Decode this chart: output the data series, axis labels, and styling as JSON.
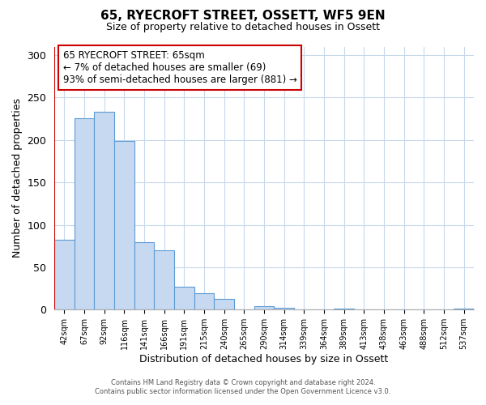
{
  "title": "65, RYECROFT STREET, OSSETT, WF5 9EN",
  "subtitle": "Size of property relative to detached houses in Ossett",
  "xlabel": "Distribution of detached houses by size in Ossett",
  "ylabel": "Number of detached properties",
  "bar_labels": [
    "42sqm",
    "67sqm",
    "92sqm",
    "116sqm",
    "141sqm",
    "166sqm",
    "191sqm",
    "215sqm",
    "240sqm",
    "265sqm",
    "290sqm",
    "314sqm",
    "339sqm",
    "364sqm",
    "389sqm",
    "413sqm",
    "438sqm",
    "463sqm",
    "488sqm",
    "512sqm",
    "537sqm"
  ],
  "bar_values": [
    82,
    226,
    233,
    199,
    80,
    70,
    27,
    19,
    13,
    0,
    4,
    2,
    0,
    0,
    1,
    0,
    0,
    0,
    0,
    0,
    1
  ],
  "bar_color": "#c6d9f0",
  "highlight_edge_color": "#cc0000",
  "normal_edge_color": "#5b9bd5",
  "annotation_line1": "65 RYECROFT STREET: 65sqm",
  "annotation_line2": "← 7% of detached houses are smaller (69)",
  "annotation_line3": "93% of semi-detached houses are larger (881) →",
  "ylim": [
    0,
    310
  ],
  "yticks": [
    0,
    50,
    100,
    150,
    200,
    250,
    300
  ],
  "footer_line1": "Contains HM Land Registry data © Crown copyright and database right 2024.",
  "footer_line2": "Contains public sector information licensed under the Open Government Licence v3.0.",
  "bg_color": "#ffffff",
  "grid_color": "#c8d8ec",
  "box_edge_color": "#cc0000"
}
